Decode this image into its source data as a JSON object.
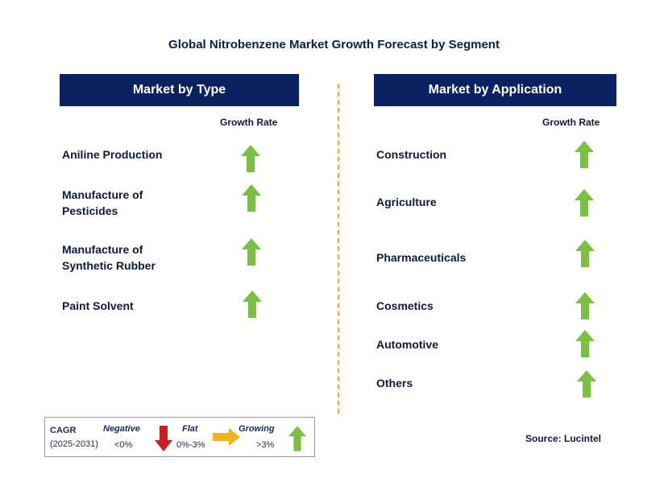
{
  "title": "Global Nitrobenzene Market Growth Forecast by Segment",
  "left_panel": {
    "header": "Market by Type",
    "growth_label": "Growth Rate",
    "items": [
      {
        "label_line1": "Aniline Production",
        "label_line2": "",
        "trend": "growing"
      },
      {
        "label_line1": "Manufacture of",
        "label_line2": "Pesticides",
        "trend": "growing"
      },
      {
        "label_line1": "Manufacture of",
        "label_line2": "Synthetic Rubber",
        "trend": "growing"
      },
      {
        "label_line1": "Paint Solvent",
        "label_line2": "",
        "trend": "growing"
      }
    ]
  },
  "right_panel": {
    "header": "Market by Application",
    "growth_label": "Growth Rate",
    "items": [
      {
        "label": "Construction",
        "trend": "growing"
      },
      {
        "label": "Agriculture",
        "trend": "growing"
      },
      {
        "label": "Pharmaceuticals",
        "trend": "growing"
      },
      {
        "label": "Cosmetics",
        "trend": "growing"
      },
      {
        "label": "Automotive",
        "trend": "growing"
      },
      {
        "label": "Others",
        "trend": "growing"
      }
    ]
  },
  "legend": {
    "cagr_label": "CAGR",
    "period": "(2025-2031)",
    "negative_label": "Negative",
    "negative_range": "<0%",
    "flat_label": "Flat",
    "flat_range": "0%-3%",
    "growing_label": "Growing",
    "growing_range": ">3%"
  },
  "source": "Source: Lucintel",
  "colors": {
    "header_bg": "#0b2260",
    "growing_arrow": "#7ac143",
    "negative_arrow": "#cc1f1f",
    "flat_arrow": "#f2b21c",
    "divider": "#f2b21c"
  },
  "icons": {
    "growing": "up-arrow-icon",
    "negative": "down-arrow-icon",
    "flat": "right-arrow-icon"
  }
}
